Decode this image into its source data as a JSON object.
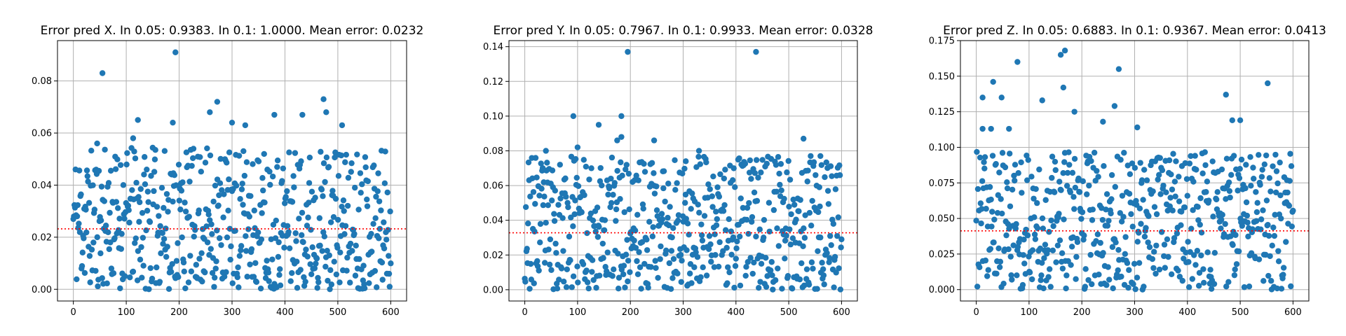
{
  "chart_data": [
    {
      "type": "scatter",
      "title": "Error pred X. In 0.05: 0.9383. In 0.1: 1.0000. Mean error: 0.0232",
      "xlabel": "",
      "ylabel": "",
      "xlim": [
        -30,
        630
      ],
      "ylim": [
        -0.0045,
        0.0955
      ],
      "xticks": [
        0,
        100,
        200,
        300,
        400,
        500,
        600
      ],
      "xtick_labels": [
        "0",
        "100",
        "200",
        "300",
        "400",
        "500",
        "600"
      ],
      "yticks": [
        0.0,
        0.02,
        0.04,
        0.06,
        0.08
      ],
      "ytick_labels": [
        "0.00",
        "0.02",
        "0.04",
        "0.06",
        "0.08"
      ],
      "grid": true,
      "mean_line": 0.0232,
      "point_count": 600,
      "seed": 11,
      "outliers": [
        [
          55,
          0.083
        ],
        [
          193,
          0.091
        ],
        [
          258,
          0.068
        ],
        [
          272,
          0.072
        ],
        [
          473,
          0.073
        ],
        [
          478,
          0.068
        ],
        [
          122,
          0.065
        ],
        [
          380,
          0.067
        ],
        [
          433,
          0.067
        ],
        [
          188,
          0.064
        ],
        [
          300,
          0.064
        ],
        [
          508,
          0.063
        ],
        [
          325,
          0.063
        ],
        [
          113,
          0.058
        ],
        [
          45,
          0.056
        ]
      ],
      "series": [
        {
          "color": "#1f77b4"
        }
      ],
      "mean_color": "#ff0000"
    },
    {
      "type": "scatter",
      "title": "Error pred Y. In 0.05: 0.7967. In 0.1: 0.9933. Mean error: 0.0328",
      "xlabel": "",
      "ylabel": "",
      "xlim": [
        -30,
        630
      ],
      "ylim": [
        -0.0065,
        0.1435
      ],
      "xticks": [
        0,
        100,
        200,
        300,
        400,
        500,
        600
      ],
      "xtick_labels": [
        "0",
        "100",
        "200",
        "300",
        "400",
        "500",
        "600"
      ],
      "yticks": [
        0.0,
        0.02,
        0.04,
        0.06,
        0.08,
        0.1,
        0.12,
        0.14
      ],
      "ytick_labels": [
        "0.00",
        "0.02",
        "0.04",
        "0.06",
        "0.08",
        "0.10",
        "0.12",
        "0.14"
      ],
      "grid": true,
      "mean_line": 0.0328,
      "point_count": 600,
      "seed": 23,
      "outliers": [
        [
          195,
          0.137
        ],
        [
          438,
          0.137
        ],
        [
          92,
          0.1
        ],
        [
          183,
          0.1
        ],
        [
          140,
          0.095
        ],
        [
          183,
          0.088
        ],
        [
          528,
          0.087
        ],
        [
          245,
          0.086
        ],
        [
          175,
          0.086
        ],
        [
          100,
          0.082
        ],
        [
          40,
          0.08
        ],
        [
          330,
          0.08
        ],
        [
          305,
          0.074
        ],
        [
          560,
          0.077
        ]
      ],
      "series": [
        {
          "color": "#1f77b4"
        }
      ],
      "mean_color": "#ff0000"
    },
    {
      "type": "scatter",
      "title": "Error pred Z. In 0.05: 0.6883. In 0.1: 0.9367. Mean error: 0.0413",
      "xlabel": "",
      "ylabel": "",
      "xlim": [
        -30,
        630
      ],
      "ylim": [
        -0.008,
        0.175
      ],
      "xticks": [
        0,
        100,
        200,
        300,
        400,
        500,
        600
      ],
      "xtick_labels": [
        "0",
        "100",
        "200",
        "300",
        "400",
        "500",
        "600"
      ],
      "yticks": [
        0.0,
        0.025,
        0.05,
        0.075,
        0.1,
        0.125,
        0.15,
        0.175
      ],
      "ytick_labels": [
        "0.000",
        "0.025",
        "0.050",
        "0.075",
        "0.100",
        "0.125",
        "0.150",
        "0.175"
      ],
      "grid": true,
      "mean_line": 0.0413,
      "point_count": 600,
      "seed": 37,
      "outliers": [
        [
          168,
          0.168
        ],
        [
          160,
          0.165
        ],
        [
          78,
          0.16
        ],
        [
          270,
          0.155
        ],
        [
          32,
          0.146
        ],
        [
          552,
          0.145
        ],
        [
          165,
          0.142
        ],
        [
          473,
          0.137
        ],
        [
          12,
          0.135
        ],
        [
          48,
          0.135
        ],
        [
          125,
          0.133
        ],
        [
          262,
          0.129
        ],
        [
          186,
          0.125
        ],
        [
          485,
          0.119
        ],
        [
          500,
          0.119
        ],
        [
          240,
          0.118
        ],
        [
          305,
          0.114
        ],
        [
          12,
          0.113
        ],
        [
          28,
          0.113
        ],
        [
          62,
          0.113
        ]
      ],
      "series": [
        {
          "color": "#1f77b4"
        }
      ],
      "mean_color": "#ff0000"
    }
  ]
}
